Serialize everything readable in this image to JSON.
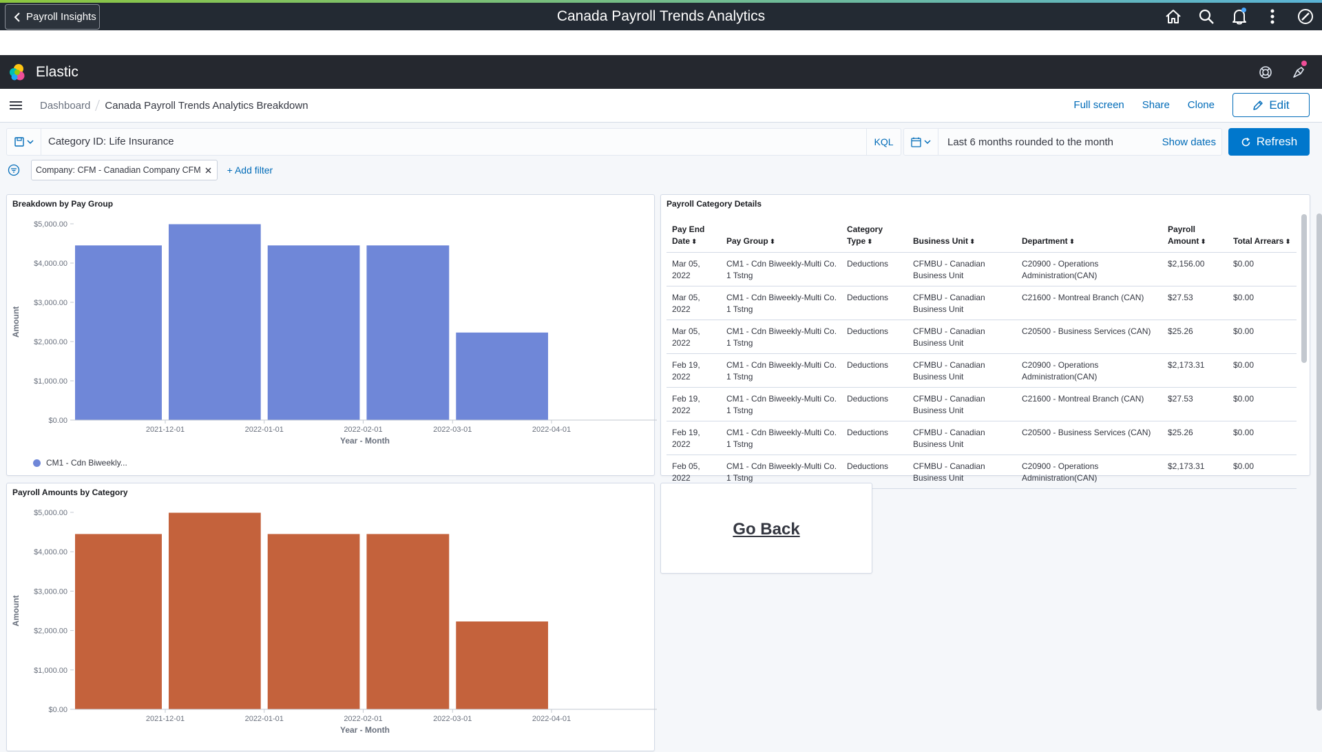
{
  "header": {
    "back_label": "Payroll Insights",
    "title": "Canada Payroll Trends Analytics"
  },
  "elastic": {
    "brand": "Elastic"
  },
  "breadcrumb": {
    "root": "Dashboard",
    "current": "Canada Payroll Trends Analytics Breakdown"
  },
  "actions": {
    "full_screen": "Full screen",
    "share": "Share",
    "clone": "Clone",
    "edit": "Edit"
  },
  "query": {
    "value": "Category ID: Life Insurance",
    "language": "KQL"
  },
  "time": {
    "range": "Last 6 months rounded to the month",
    "show_dates": "Show dates",
    "refresh": "Refresh"
  },
  "filters": {
    "pill": "Company: CFM - Canadian Company CFM",
    "add": "+ Add filter"
  },
  "panels": {
    "bar1_title": "Breakdown by Pay Group",
    "bar2_title": "Payroll Amounts by Category",
    "table_title": "Payroll Category Details",
    "go_back": "Go Back"
  },
  "legend": {
    "series1": "CM1 - Cdn Biweekly..."
  },
  "table": {
    "headers": [
      "Pay End Date",
      "Pay Group",
      "Category Type",
      "Business Unit",
      "Department",
      "Payroll Amount",
      "Total Arrears"
    ],
    "rows": [
      [
        "Mar 05, 2022",
        "CM1 - Cdn Biweekly-Multi Co. 1 Tstng",
        "Deductions",
        "CFMBU - Canadian Business Unit",
        "C20900 - Operations Administration(CAN)",
        "$2,156.00",
        "$0.00"
      ],
      [
        "Mar 05, 2022",
        "CM1 - Cdn Biweekly-Multi Co. 1 Tstng",
        "Deductions",
        "CFMBU - Canadian Business Unit",
        "C21600 - Montreal Branch (CAN)",
        "$27.53",
        "$0.00"
      ],
      [
        "Mar 05, 2022",
        "CM1 - Cdn Biweekly-Multi Co. 1 Tstng",
        "Deductions",
        "CFMBU - Canadian Business Unit",
        "C20500 - Business Services (CAN)",
        "$25.26",
        "$0.00"
      ],
      [
        "Feb 19, 2022",
        "CM1 - Cdn Biweekly-Multi Co. 1 Tstng",
        "Deductions",
        "CFMBU - Canadian Business Unit",
        "C20900 - Operations Administration(CAN)",
        "$2,173.31",
        "$0.00"
      ],
      [
        "Feb 19, 2022",
        "CM1 - Cdn Biweekly-Multi Co. 1 Tstng",
        "Deductions",
        "CFMBU - Canadian Business Unit",
        "C21600 - Montreal Branch (CAN)",
        "$27.53",
        "$0.00"
      ],
      [
        "Feb 19, 2022",
        "CM1 - Cdn Biweekly-Multi Co. 1 Tstng",
        "Deductions",
        "CFMBU - Canadian Business Unit",
        "C20500 - Business Services (CAN)",
        "$25.26",
        "$0.00"
      ],
      [
        "Feb 05, 2022",
        "CM1 - Cdn Biweekly-Multi Co. 1 Tstng",
        "Deductions",
        "CFMBU - Canadian Business Unit",
        "C20900 - Operations Administration(CAN)",
        "$2,173.31",
        "$0.00"
      ]
    ]
  },
  "chart_data": [
    {
      "type": "bar",
      "title": "Breakdown by Pay Group",
      "xlabel": "Year - Month",
      "ylabel": "Amount",
      "ylim": [
        0,
        5000
      ],
      "y_ticks": [
        "$0.00",
        "$1,000.00",
        "$2,000.00",
        "$3,000.00",
        "$4,000.00",
        "$5,000.00"
      ],
      "x_ticks": [
        "2021-12-01",
        "2022-01-01",
        "2022-02-01",
        "2022-03-01",
        "2022-04-01"
      ],
      "bars": [
        {
          "x": "2021-11-01",
          "x_end": "2021-12-01",
          "value": 4450
        },
        {
          "x": "2021-12-01",
          "x_end": "2022-01-01",
          "value": 4990
        },
        {
          "x": "2022-01-01",
          "x_end": "2022-02-01",
          "value": 4450
        },
        {
          "x": "2022-02-01",
          "x_end": "2022-03-01",
          "value": 4450
        },
        {
          "x": "2022-03-01",
          "x_end": "2022-04-01",
          "value": 2230
        }
      ],
      "color": "#6f87d8",
      "legend": "bottom-left"
    },
    {
      "type": "bar",
      "title": "Payroll Amounts by Category",
      "xlabel": "Year - Month",
      "ylabel": "Amount",
      "ylim": [
        0,
        5000
      ],
      "y_ticks": [
        "$0.00",
        "$1,000.00",
        "$2,000.00",
        "$3,000.00",
        "$4,000.00",
        "$5,000.00"
      ],
      "x_ticks": [
        "2021-12-01",
        "2022-01-01",
        "2022-02-01",
        "2022-03-01",
        "2022-04-01"
      ],
      "bars": [
        {
          "x": "2021-11-01",
          "x_end": "2021-12-01",
          "value": 4450
        },
        {
          "x": "2021-12-01",
          "x_end": "2022-01-01",
          "value": 4990
        },
        {
          "x": "2022-01-01",
          "x_end": "2022-02-01",
          "value": 4450
        },
        {
          "x": "2022-02-01",
          "x_end": "2022-03-01",
          "value": 4450
        },
        {
          "x": "2022-03-01",
          "x_end": "2022-04-01",
          "value": 2230
        }
      ],
      "color": "#c4623c"
    }
  ]
}
